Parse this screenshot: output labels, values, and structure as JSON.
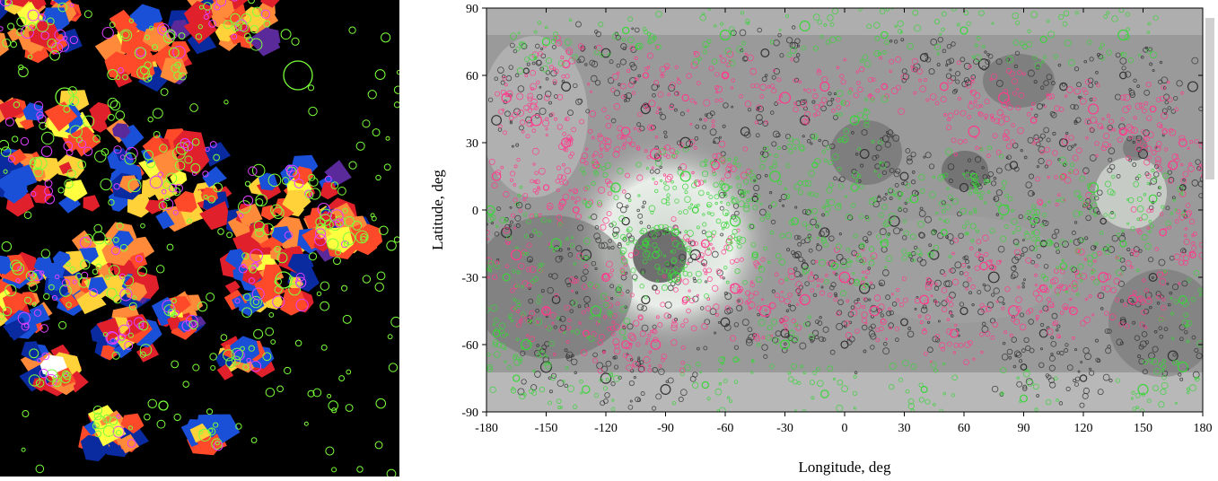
{
  "chart_data": [
    {
      "type": "scatter",
      "panel": "left",
      "description_visible": "Voronoi-tessellated crater density map on black background with green and magenta crater circles",
      "colors": {
        "background": "#000000",
        "crater_outline_green": "#7bff3a",
        "crater_outline_magenta": "#e040ff",
        "cell_palette": [
          "#ffffff",
          "#ffff40",
          "#ffd23a",
          "#ff8a3a",
          "#ff4a2a",
          "#e0202a",
          "#1a50d8",
          "#0a2aa0",
          "#5a2a9a",
          "#1070ff"
        ]
      }
    },
    {
      "type": "scatter",
      "panel": "right",
      "title": "",
      "xlabel": "Longitude, deg",
      "ylabel": "Latitude, deg",
      "xlim": [
        -180,
        180
      ],
      "ylim": [
        -90,
        90
      ],
      "x_ticks": [
        -180,
        -150,
        -120,
        -90,
        -60,
        -30,
        0,
        30,
        60,
        90,
        120,
        150,
        180
      ],
      "y_ticks": [
        90,
        60,
        30,
        0,
        -30,
        -60,
        -90
      ],
      "grid": false,
      "series": [
        {
          "color": "#333333",
          "points": [
            [
              -160,
              62
            ],
            [
              -140,
              55
            ],
            [
              -100,
              45
            ],
            [
              -80,
              30
            ],
            [
              -50,
              35
            ],
            [
              -20,
              40
            ],
            [
              10,
              25
            ],
            [
              30,
              15
            ],
            [
              60,
              10
            ],
            [
              85,
              20
            ],
            [
              110,
              30
            ],
            [
              150,
              25
            ],
            [
              170,
              10
            ],
            [
              -170,
              -10
            ],
            [
              -130,
              -20
            ],
            [
              -100,
              -40
            ],
            [
              -60,
              -50
            ],
            [
              -30,
              -55
            ],
            [
              0,
              -60
            ],
            [
              30,
              -50
            ],
            [
              60,
              -45
            ],
            [
              100,
              -55
            ],
            [
              140,
              -50
            ],
            [
              165,
              -65
            ],
            [
              -150,
              -70
            ],
            [
              -120,
              -75
            ],
            [
              -90,
              -80
            ],
            [
              120,
              -75
            ],
            [
              90,
              -70
            ],
            [
              -175,
              40
            ],
            [
              175,
              55
            ],
            [
              140,
              60
            ],
            [
              110,
              55
            ],
            [
              70,
              65
            ],
            [
              40,
              68
            ],
            [
              -40,
              70
            ],
            [
              -120,
              70
            ],
            [
              -20,
              -25
            ],
            [
              10,
              -35
            ],
            [
              45,
              -20
            ],
            [
              75,
              -30
            ],
            [
              100,
              -15
            ],
            [
              130,
              -5
            ],
            [
              155,
              -30
            ],
            [
              -145,
              -40
            ],
            [
              -110,
              -5
            ],
            [
              -75,
              -20
            ],
            [
              -45,
              5
            ],
            [
              -10,
              -10
            ],
            [
              25,
              -5
            ]
          ]
        },
        {
          "color": "#ff3a8c",
          "points": [
            [
              -170,
              50
            ],
            [
              -155,
              40
            ],
            [
              -140,
              30
            ],
            [
              -125,
              20
            ],
            [
              -110,
              35
            ],
            [
              -95,
              25
            ],
            [
              -80,
              50
            ],
            [
              -65,
              20
            ],
            [
              -150,
              10
            ],
            [
              -135,
              0
            ],
            [
              -165,
              -20
            ],
            [
              -150,
              -45
            ],
            [
              -130,
              -55
            ],
            [
              -110,
              -60
            ],
            [
              -80,
              -40
            ],
            [
              -70,
              -15
            ],
            [
              -55,
              -35
            ],
            [
              -40,
              -45
            ],
            [
              -20,
              -40
            ],
            [
              0,
              -30
            ],
            [
              15,
              -45
            ],
            [
              40,
              -40
            ],
            [
              55,
              -55
            ],
            [
              70,
              -25
            ],
            [
              85,
              -45
            ],
            [
              100,
              -35
            ],
            [
              115,
              -45
            ],
            [
              130,
              -30
            ],
            [
              145,
              -40
            ],
            [
              160,
              -10
            ],
            [
              170,
              30
            ],
            [
              155,
              45
            ],
            [
              140,
              35
            ],
            [
              125,
              45
            ],
            [
              110,
              15
            ],
            [
              95,
              40
            ],
            [
              80,
              50
            ],
            [
              65,
              35
            ],
            [
              50,
              55
            ],
            [
              20,
              55
            ],
            [
              -10,
              55
            ],
            [
              -30,
              50
            ],
            [
              -60,
              60
            ],
            [
              -100,
              60
            ],
            [
              -140,
              65
            ],
            [
              -175,
              15
            ],
            [
              175,
              -20
            ],
            [
              165,
              20
            ],
            [
              -120,
              -30
            ],
            [
              -95,
              -60
            ]
          ]
        },
        {
          "color": "#3ad43a",
          "points": [
            [
              -178,
              0
            ],
            [
              -170,
              -30
            ],
            [
              -160,
              -60
            ],
            [
              -145,
              -15
            ],
            [
              -125,
              -45
            ],
            [
              -115,
              10
            ],
            [
              -100,
              -15
            ],
            [
              -85,
              -30
            ],
            [
              -75,
              0
            ],
            [
              -60,
              10
            ],
            [
              -45,
              -20
            ],
            [
              -35,
              15
            ],
            [
              -25,
              -5
            ],
            [
              -15,
              20
            ],
            [
              -5,
              -25
            ],
            [
              5,
              10
            ],
            [
              20,
              -15
            ],
            [
              35,
              5
            ],
            [
              50,
              -10
            ],
            [
              65,
              15
            ],
            [
              80,
              0
            ],
            [
              95,
              -5
            ],
            [
              110,
              -25
            ],
            [
              125,
              10
            ],
            [
              140,
              -15
            ],
            [
              155,
              5
            ],
            [
              170,
              -40
            ],
            [
              -150,
              75
            ],
            [
              -110,
              80
            ],
            [
              -60,
              78
            ],
            [
              -20,
              82
            ],
            [
              20,
              78
            ],
            [
              60,
              80
            ],
            [
              100,
              76
            ],
            [
              140,
              78
            ],
            [
              -130,
              -80
            ],
            [
              -70,
              -78
            ],
            [
              -10,
              -82
            ],
            [
              40,
              -80
            ],
            [
              90,
              -84
            ],
            [
              150,
              -80
            ],
            [
              -80,
              15
            ],
            [
              -55,
              -5
            ],
            [
              5,
              40
            ],
            [
              -30,
              -60
            ],
            [
              -165,
              -75
            ],
            [
              -175,
              -55
            ],
            [
              170,
              -70
            ],
            [
              -95,
              -20
            ],
            [
              -85,
              -10
            ]
          ]
        }
      ]
    }
  ]
}
